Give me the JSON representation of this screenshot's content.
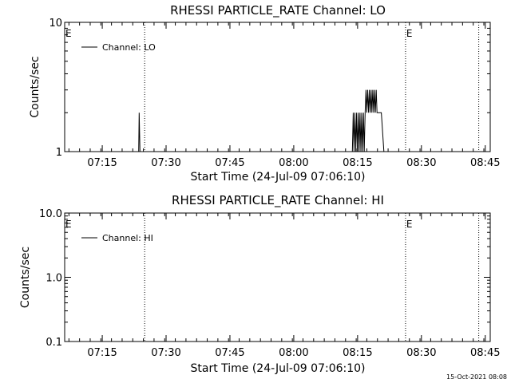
{
  "footer": "15-Oct-2021 08:08",
  "chart_data": [
    {
      "type": "line",
      "title": "RHESSI PARTICLE_RATE Channel: LO",
      "xlabel": "Start Time (24-Jul-09 07:06:10)",
      "ylabel": "Counts/sec",
      "y_scale": "log",
      "ylim": [
        1,
        10
      ],
      "y_ticks": [
        1,
        10
      ],
      "y_tick_labels": [
        "1",
        "10"
      ],
      "x_tick_labels": [
        "07:15",
        "07:30",
        "07:45",
        "08:00",
        "08:15",
        "08:30",
        "08:45"
      ],
      "xlim_minutes_after_start": [
        0,
        100
      ],
      "legend": {
        "label": "Channel: LO",
        "position": "top-left"
      },
      "markers": [
        {
          "minute": 0,
          "label": "E"
        },
        {
          "minute": 18.8,
          "label": ""
        },
        {
          "minute": 80.1,
          "label": "E"
        },
        {
          "minute": 97.3,
          "label": ""
        }
      ],
      "series": [
        {
          "name": "Channel: LO",
          "points": [
            [
              17.4,
              1
            ],
            [
              17.5,
              2
            ],
            [
              17.7,
              1
            ],
            [
              67.6,
              1
            ],
            [
              67.8,
              2
            ],
            [
              68.0,
              1
            ],
            [
              68.2,
              2
            ],
            [
              68.4,
              1
            ],
            [
              68.6,
              2
            ],
            [
              68.8,
              1
            ],
            [
              69.0,
              2
            ],
            [
              69.2,
              1
            ],
            [
              69.4,
              2
            ],
            [
              69.6,
              1
            ],
            [
              69.8,
              2
            ],
            [
              70.0,
              1
            ],
            [
              70.2,
              2
            ],
            [
              70.4,
              1
            ],
            [
              70.6,
              2
            ],
            [
              70.8,
              3
            ],
            [
              71.0,
              2
            ],
            [
              71.2,
              3
            ],
            [
              71.4,
              2
            ],
            [
              71.6,
              3
            ],
            [
              71.8,
              2
            ],
            [
              72.0,
              3
            ],
            [
              72.2,
              2
            ],
            [
              72.4,
              3
            ],
            [
              72.6,
              2
            ],
            [
              72.8,
              3
            ],
            [
              73.0,
              2
            ],
            [
              73.2,
              3
            ],
            [
              73.4,
              2
            ],
            [
              73.6,
              2
            ],
            [
              74.4,
              2
            ],
            [
              75.0,
              1
            ]
          ]
        }
      ]
    },
    {
      "type": "line",
      "title": "RHESSI PARTICLE_RATE Channel: HI",
      "xlabel": "Start Time (24-Jul-09 07:06:10)",
      "ylabel": "Counts/sec",
      "y_scale": "log",
      "ylim": [
        0.1,
        10
      ],
      "y_ticks": [
        0.1,
        1,
        10
      ],
      "y_tick_labels": [
        "0.1",
        "1.0",
        "10.0"
      ],
      "x_tick_labels": [
        "07:15",
        "07:30",
        "07:45",
        "08:00",
        "08:15",
        "08:30",
        "08:45"
      ],
      "xlim_minutes_after_start": [
        0,
        100
      ],
      "legend": {
        "label": "Channel: HI",
        "position": "top-left"
      },
      "markers": [
        {
          "minute": 0,
          "label": "E"
        },
        {
          "minute": 18.8,
          "label": ""
        },
        {
          "minute": 80.1,
          "label": "E"
        },
        {
          "minute": 97.3,
          "label": ""
        }
      ],
      "series": [
        {
          "name": "Channel: HI",
          "points": []
        }
      ]
    }
  ]
}
